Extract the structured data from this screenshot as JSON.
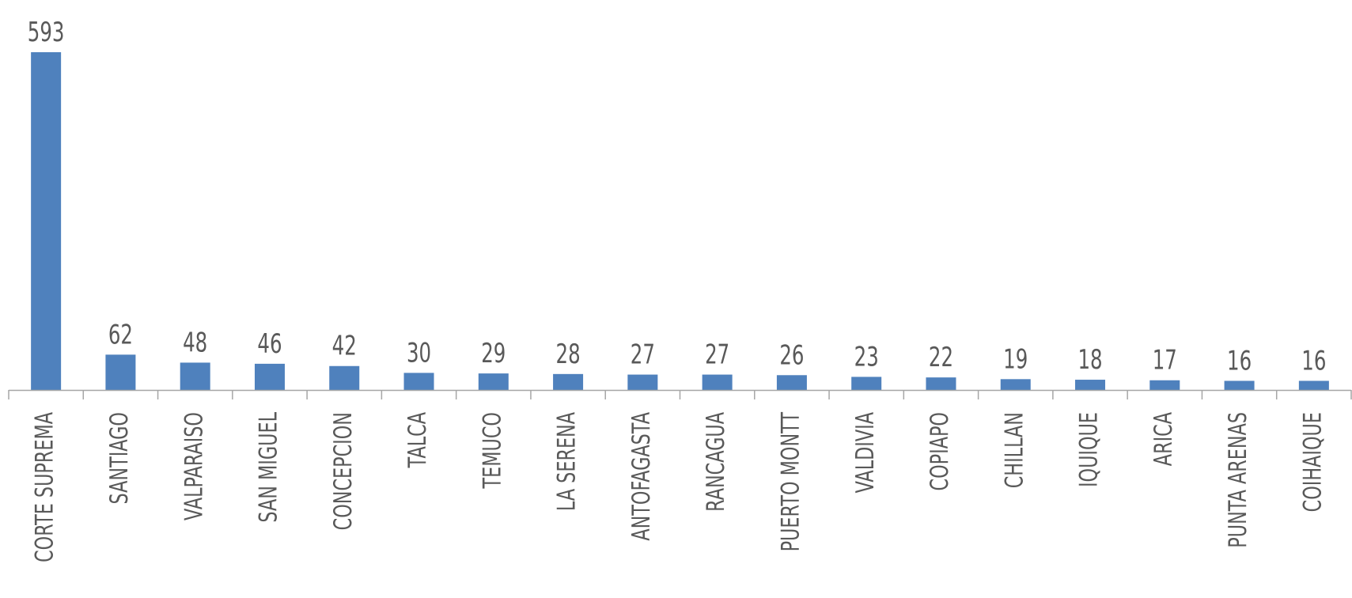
{
  "chart_data": {
    "type": "bar",
    "categories": [
      "CORTE SUPREMA",
      "SANTIAGO",
      "VALPARAISO",
      "SAN MIGUEL",
      "CONCEPCION",
      "TALCA",
      "TEMUCO",
      "LA SERENA",
      "ANTOFAGASTA",
      "RANCAGUA",
      "PUERTO MONTT",
      "VALDIVIA",
      "COPIAPO",
      "CHILLAN",
      "IQUIQUE",
      "ARICA",
      "PUNTA ARENAS",
      "COIHAIQUE"
    ],
    "values": [
      593,
      62,
      48,
      46,
      42,
      30,
      29,
      28,
      27,
      27,
      26,
      23,
      22,
      19,
      18,
      17,
      16,
      16
    ],
    "ylim": [
      0,
      593
    ],
    "grid": false,
    "legend": "none",
    "bar_color": "#4f81bd",
    "axis_color": "#a6a6a6",
    "label_color": "#595959"
  }
}
